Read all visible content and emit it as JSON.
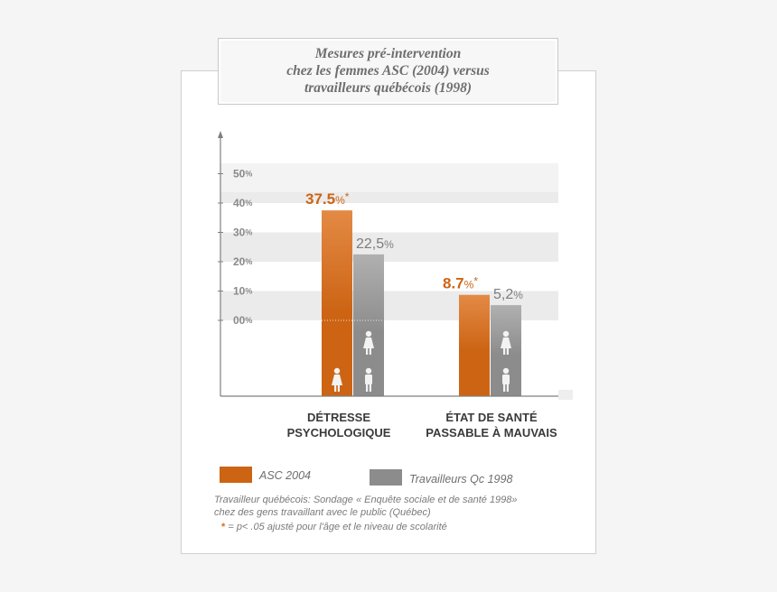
{
  "title": {
    "line1": "Mesures pré-intervention",
    "line2": "chez les femmes ASC (2004) versus",
    "line3": "travailleurs québécois (1998)"
  },
  "colors": {
    "asc": "#cc6414",
    "asc_light": "#e38a45",
    "qc": "#8c8c8c",
    "qc_light": "#b0b0b0",
    "band": "#ebebeb",
    "axis": "#7f7f7f"
  },
  "chart_data": {
    "type": "bar",
    "title": "Mesures pré-intervention chez les femmes ASC (2004) versus travailleurs québécois (1998)",
    "categories": [
      "DÉTRESSE PSYCHOLOGIQUE",
      "ÉTAT DE SANTÉ PASSABLE À MAUVAIS"
    ],
    "category_lines": [
      [
        "DÉTRESSE",
        "PSYCHOLOGIQUE"
      ],
      [
        "ÉTAT DE SANTÉ",
        "PASSABLE À MAUVAIS"
      ]
    ],
    "series": [
      {
        "name": "ASC 2004",
        "values": [
          37.5,
          8.7
        ],
        "labels": [
          "37.5",
          "8.7"
        ],
        "significant": [
          true,
          true
        ]
      },
      {
        "name": "Travailleurs Qc 1998",
        "values": [
          22.5,
          5.2
        ],
        "labels": [
          "22,5",
          "5,2"
        ],
        "significant": [
          false,
          false
        ]
      }
    ],
    "yticks": [
      {
        "value": 0,
        "label": "00"
      },
      {
        "value": 10,
        "label": "10"
      },
      {
        "value": 20,
        "label": "20"
      },
      {
        "value": 30,
        "label": "30"
      },
      {
        "value": 40,
        "label": "40"
      },
      {
        "value": 50,
        "label": "50"
      }
    ],
    "percent_sign": "%",
    "significance_marker": "*",
    "ylim": [
      -26,
      65
    ],
    "grid": "alternating bands",
    "legend": "bottom-left"
  },
  "legend": {
    "items": [
      {
        "label": "ASC 2004"
      },
      {
        "label": "Travailleurs Qc 1998"
      }
    ]
  },
  "notes": {
    "source_line1": "Travailleur québécois: Sondage « Enquête sociale et de santé 1998»",
    "source_line2": "chez des gens travaillant avec le public (Québec)",
    "star": "*",
    "significance": " = p< .05 ajusté pour l'âge et le niveau de scolarité"
  }
}
